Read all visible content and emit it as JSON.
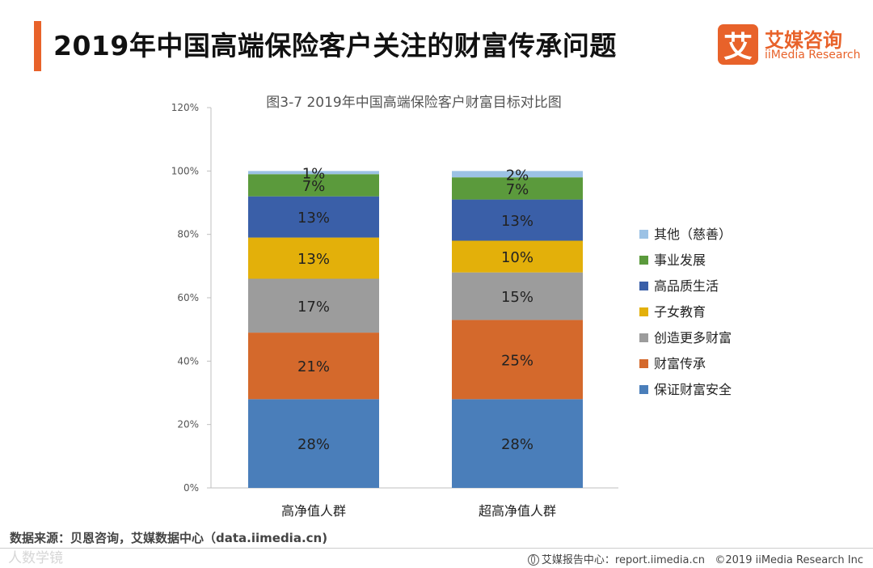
{
  "page": {
    "title": "2019年中国高端保险客户关注的财富传承问题",
    "logo_mark": "艾",
    "logo_cn": "艾媒咨询",
    "logo_en": "iiMedia Research",
    "source": "数据来源：贝恩咨询，艾媒数据中心（data.iimedia.cn)",
    "watermark": "人数学镜",
    "footer_report": "艾媒报告中心：report.iimedia.cn",
    "footer_copyright": "©2019  iiMedia Research  Inc"
  },
  "chart_data": {
    "type": "bar",
    "stacked": true,
    "title": "图3-7 2019年中国高端保险客户财富目标对比图",
    "categories": [
      "高净值人群",
      "超高净值人群"
    ],
    "series": [
      {
        "name": "保证财富安全",
        "values": [
          28,
          28
        ],
        "labels": [
          "28%",
          "28%"
        ],
        "color": "#4a7eba"
      },
      {
        "name": "财富传承",
        "values": [
          21,
          25
        ],
        "labels": [
          "21%",
          "25%"
        ],
        "color": "#d4692c"
      },
      {
        "name": "创造更多财富",
        "values": [
          17,
          15
        ],
        "labels": [
          "17%",
          "15%"
        ],
        "color": "#9c9c9c"
      },
      {
        "name": "子女教育",
        "values": [
          13,
          10
        ],
        "labels": [
          "13%",
          "10%"
        ],
        "color": "#e3b00a"
      },
      {
        "name": "高品质生活",
        "values": [
          13,
          13
        ],
        "labels": [
          "13%",
          "13%"
        ],
        "color": "#3a5fa8"
      },
      {
        "name": "事业发展",
        "values": [
          7,
          7
        ],
        "labels": [
          "7%",
          "7%"
        ],
        "color": "#5b9a3c"
      },
      {
        "name": "其他（慈善）",
        "values": [
          1,
          2
        ],
        "labels": [
          "1%",
          "2%"
        ],
        "color": "#9cc2e5"
      }
    ],
    "yticks": [
      "0%",
      "20%",
      "40%",
      "60%",
      "80%",
      "100%",
      "120%"
    ],
    "ylim": [
      0,
      120
    ],
    "legend_position": "right",
    "grid": false
  }
}
